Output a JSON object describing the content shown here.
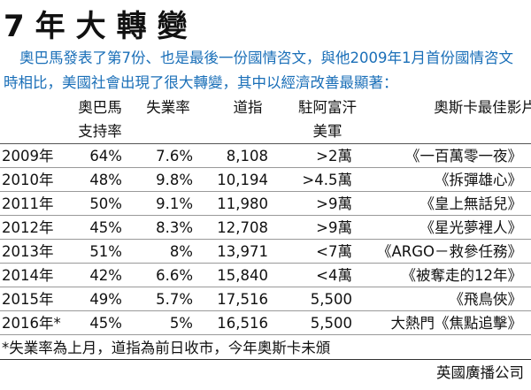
{
  "title": "7年大轉變",
  "intro": "奧巴馬發表了第7份、也是最後一份國情咨文，與他2009年1月首份國情咨文時相比，美國社會出現了很大轉變，其中以經濟改善最顯著：",
  "table": {
    "header": [
      [
        "奧巴馬",
        "支持率"
      ],
      [
        "失業率"
      ],
      [
        "道指"
      ],
      [
        "駐阿富汗",
        "美軍"
      ],
      [
        "奧斯卡最佳影片"
      ]
    ],
    "rows": [
      [
        "2009年",
        "64%",
        "7.6%",
        "8,108",
        ">2萬",
        "《一百萬零一夜》"
      ],
      [
        "2010年",
        "48%",
        "9.8%",
        "10,194",
        ">4.5萬",
        "《拆彈雄心》"
      ],
      [
        "2011年",
        "50%",
        "9.1%",
        "11,980",
        ">9萬",
        "《皇上無話兒》"
      ],
      [
        "2012年",
        "45%",
        "8.3%",
        "12,708",
        ">9萬",
        "《星光夢裡人》"
      ],
      [
        "2013年",
        "51%",
        "8%",
        "13,971",
        "<7萬",
        "《ARGO－救參任務》"
      ],
      [
        "2014年",
        "42%",
        "6.6%",
        "15,840",
        "<4萬",
        "《被奪走的12年》"
      ],
      [
        "2015年",
        "49%",
        "5.7%",
        "17,516",
        "5,500",
        "《飛鳥俠》"
      ],
      [
        "2016年*",
        "45%",
        "5%",
        "16,516",
        "5,500",
        "大熱門《焦點追擊》"
      ]
    ]
  },
  "footnote": "*失業率為上月，道指為前日收市，今年奧斯卡未頒",
  "source": "英國廣播公司"
}
